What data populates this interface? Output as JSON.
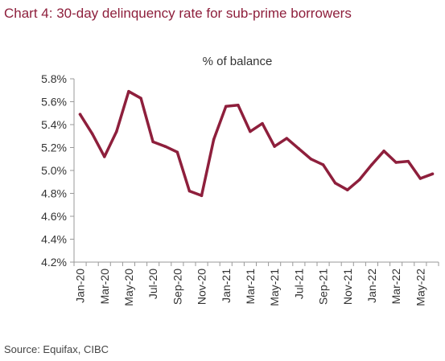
{
  "title": "Chart 4: 30-day delinquency rate for sub-prime borrowers",
  "source": "Source: Equifax, CIBC",
  "chart_data": {
    "type": "line",
    "subtitle": "% of balance",
    "line_color": "#8e1f3c",
    "ylim": [
      4.2,
      5.8
    ],
    "yticks": [
      "4.2%",
      "4.4%",
      "4.6%",
      "4.8%",
      "5.0%",
      "5.2%",
      "5.4%",
      "5.6%",
      "5.8%"
    ],
    "x_tick_labels": [
      "Jan-20",
      "Mar-20",
      "May-20",
      "Jul-20",
      "Sep-20",
      "Nov-20",
      "Jan-21",
      "Mar-21",
      "May-21",
      "Jul-21",
      "Sep-21",
      "Nov-21",
      "Jan-22",
      "Mar-22",
      "May-22"
    ],
    "x": [
      "Jan-20",
      "Feb-20",
      "Mar-20",
      "Apr-20",
      "May-20",
      "Jun-20",
      "Jul-20",
      "Aug-20",
      "Sep-20",
      "Oct-20",
      "Nov-20",
      "Dec-20",
      "Jan-21",
      "Feb-21",
      "Mar-21",
      "Apr-21",
      "May-21",
      "Jun-21",
      "Jul-21",
      "Aug-21",
      "Sep-21",
      "Oct-21",
      "Nov-21",
      "Dec-21",
      "Jan-22",
      "Feb-22",
      "Mar-22",
      "Apr-22",
      "May-22",
      "Jun-22"
    ],
    "series": [
      {
        "values": [
          5.49,
          5.32,
          5.12,
          5.34,
          5.69,
          5.63,
          5.25,
          5.21,
          5.16,
          4.82,
          4.78,
          5.27,
          5.56,
          5.57,
          5.34,
          5.41,
          5.21,
          5.28,
          5.19,
          5.1,
          5.05,
          4.89,
          4.83,
          4.92,
          5.05,
          5.17,
          5.07,
          5.08,
          4.93,
          4.97
        ]
      }
    ],
    "grid": false,
    "legend": "none"
  }
}
